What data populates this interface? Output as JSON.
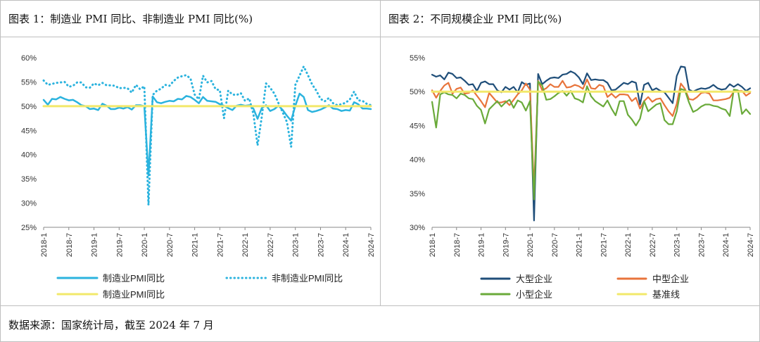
{
  "chart_data": [
    {
      "type": "line",
      "title": "图表 1：制造业 PMI 同比、非制造业 PMI 同比(%)",
      "xlabel": "",
      "ylabel": "",
      "ylim": [
        25,
        60
      ],
      "y_ticks": [
        "60%",
        "55%",
        "50%",
        "45%",
        "40%",
        "35%",
        "30%",
        "25%"
      ],
      "x_ticks": [
        "2018-1",
        "2018-7",
        "2019-1",
        "2019-7",
        "2020-1",
        "2020-7",
        "2021-1",
        "2021-7",
        "2022-1",
        "2022-7",
        "2023-1",
        "2023-7",
        "2024-1",
        "2024-7"
      ],
      "legend_position": "bottom",
      "series": [
        {
          "name": "制造业PMI同比",
          "style": "solid",
          "color": "#2bb3de",
          "values": [
            51.3,
            50.3,
            51.5,
            51.4,
            51.9,
            51.5,
            51.2,
            51.3,
            50.8,
            50.2,
            50.0,
            49.4,
            49.5,
            49.2,
            50.5,
            50.1,
            49.4,
            49.4,
            49.7,
            49.5,
            49.8,
            49.3,
            50.2,
            50.2,
            50.0,
            35.7,
            52.0,
            50.8,
            50.6,
            50.9,
            51.1,
            51.0,
            51.5,
            51.4,
            52.1,
            51.9,
            51.3,
            50.6,
            51.9,
            51.1,
            51.0,
            50.9,
            50.4,
            50.1,
            49.6,
            49.2,
            50.1,
            50.3,
            50.1,
            50.2,
            49.5,
            47.4,
            49.6,
            50.2,
            49.0,
            49.4,
            50.1,
            49.2,
            48.0,
            47.0,
            50.1,
            52.6,
            51.9,
            49.2,
            48.8,
            49.0,
            49.3,
            49.7,
            50.2,
            49.5,
            49.4,
            49.0,
            49.2,
            49.1,
            50.8,
            50.4,
            49.5,
            49.5,
            49.4
          ]
        },
        {
          "name": "非制造业PMI同比",
          "style": "dotted",
          "color": "#2bb3de",
          "values": [
            55.3,
            54.4,
            54.6,
            54.8,
            54.9,
            55.0,
            54.0,
            54.2,
            54.9,
            54.9,
            53.9,
            53.8,
            54.7,
            54.3,
            54.8,
            54.3,
            54.3,
            54.2,
            53.7,
            53.8,
            53.7,
            52.8,
            54.4,
            53.5,
            54.1,
            29.6,
            52.3,
            53.2,
            53.6,
            54.4,
            54.2,
            55.2,
            55.9,
            56.2,
            56.4,
            55.7,
            52.4,
            51.4,
            56.3,
            54.9,
            55.2,
            53.5,
            53.3,
            47.5,
            53.2,
            52.4,
            52.3,
            52.7,
            51.1,
            51.6,
            48.4,
            41.9,
            47.8,
            54.7,
            53.8,
            52.6,
            50.6,
            48.7,
            46.7,
            41.6,
            54.4,
            56.3,
            58.2,
            56.4,
            54.5,
            53.2,
            51.5,
            51.0,
            51.7,
            50.6,
            50.2,
            50.4,
            50.7,
            51.4,
            53.0,
            51.2,
            51.1,
            50.5,
            50.2
          ]
        },
        {
          "name": "制造业PMI同比",
          "style": "solid",
          "color": "#f2e86a",
          "values": [
            50,
            50
          ]
        }
      ],
      "legend": [
        "制造业PMI同比",
        "非制造业PMI同比",
        "制造业PMI同比"
      ]
    },
    {
      "type": "line",
      "title": "图表 2：不同规模企业 PMI 同比(%)",
      "xlabel": "",
      "ylabel": "",
      "ylim": [
        30,
        55
      ],
      "y_ticks": [
        "55%",
        "50%",
        "45%",
        "40%",
        "35%",
        "30%"
      ],
      "x_ticks": [
        "2018-1",
        "2018-7",
        "2019-1",
        "2019-7",
        "2020-1",
        "2020-7",
        "2021-1",
        "2021-7",
        "2022-1",
        "2022-7",
        "2023-1",
        "2023-7",
        "2024-1",
        "2024-7"
      ],
      "legend_position": "bottom",
      "series": [
        {
          "name": "大型企业",
          "color": "#1f4e79",
          "values": [
            52.5,
            52.2,
            52.4,
            51.8,
            52.8,
            52.6,
            52.0,
            52.1,
            51.6,
            51.0,
            51.1,
            50.1,
            51.3,
            51.5,
            51.1,
            51.1,
            50.2,
            49.9,
            50.7,
            50.3,
            50.7,
            49.9,
            51.4,
            51.0,
            51.2,
            31.0,
            52.6,
            51.1,
            51.6,
            52.0,
            52.1,
            52.0,
            52.5,
            52.6,
            53.0,
            52.7,
            52.1,
            51.1,
            52.7,
            51.7,
            51.8,
            51.7,
            51.7,
            51.3,
            50.2,
            50.3,
            50.8,
            51.3,
            51.1,
            51.5,
            51.3,
            48.1,
            51.0,
            51.3,
            50.2,
            50.5,
            50.1,
            49.9,
            49.1,
            48.3,
            52.3,
            53.7,
            53.6,
            50.3,
            50.0,
            50.3,
            50.5,
            50.4,
            50.6,
            51.0,
            50.5,
            50.3,
            50.4,
            51.1,
            50.7,
            51.1,
            50.7,
            50.1,
            50.5
          ]
        },
        {
          "name": "中型企业",
          "color": "#e8743b",
          "values": [
            50.2,
            49.1,
            50.1,
            50.9,
            51.3,
            49.7,
            50.4,
            50.6,
            49.7,
            49.8,
            50.2,
            49.4,
            48.6,
            47.7,
            49.8,
            49.1,
            48.4,
            48.4,
            48.6,
            48.0,
            48.8,
            49.6,
            50.2,
            51.2,
            50.3,
            35.5,
            51.6,
            50.2,
            50.5,
            51.1,
            50.7,
            50.7,
            51.6,
            50.6,
            50.7,
            51.0,
            50.8,
            50.4,
            51.8,
            50.5,
            50.4,
            51.0,
            50.8,
            49.2,
            49.7,
            49.1,
            49.6,
            49.6,
            49.5,
            48.6,
            49.1,
            47.5,
            48.6,
            49.2,
            48.5,
            48.9,
            49.0,
            48.0,
            47.1,
            46.4,
            48.2,
            51.2,
            50.4,
            48.9,
            48.8,
            49.2,
            49.8,
            49.9,
            49.7,
            48.7,
            48.7,
            48.8,
            48.9,
            49.1,
            50.0,
            50.1,
            50.1,
            49.4,
            49.8
          ]
        },
        {
          "name": "小型企业",
          "color": "#6aaa3a",
          "values": [
            48.5,
            44.7,
            49.6,
            49.9,
            49.6,
            49.5,
            49.0,
            49.7,
            49.5,
            49.0,
            48.9,
            47.9,
            47.3,
            45.3,
            47.4,
            48.0,
            48.6,
            47.8,
            48.4,
            48.8,
            47.6,
            48.7,
            48.4,
            47.2,
            48.6,
            34.1,
            51.5,
            50.9,
            48.8,
            48.9,
            49.3,
            49.8,
            50.1,
            49.4,
            50.1,
            49.0,
            48.8,
            48.4,
            50.8,
            49.3,
            48.6,
            48.2,
            47.8,
            48.7,
            47.5,
            46.5,
            48.6,
            48.6,
            46.6,
            45.9,
            45.0,
            46.0,
            48.6,
            47.1,
            47.6,
            48.1,
            48.3,
            45.8,
            45.2,
            45.2,
            47.1,
            50.4,
            50.2,
            48.4,
            47.0,
            47.3,
            47.8,
            48.1,
            48.1,
            47.9,
            47.8,
            47.5,
            47.3,
            46.4,
            50.3,
            50.2,
            46.7,
            47.4,
            46.7
          ]
        },
        {
          "name": "基准线",
          "color": "#f2e86a",
          "values": [
            50,
            50
          ]
        }
      ],
      "legend": [
        "大型企业",
        "中型企业",
        "小型企业",
        "基准线"
      ]
    }
  ],
  "footer": "数据来源：国家统计局，截至 2024 年 7 月"
}
